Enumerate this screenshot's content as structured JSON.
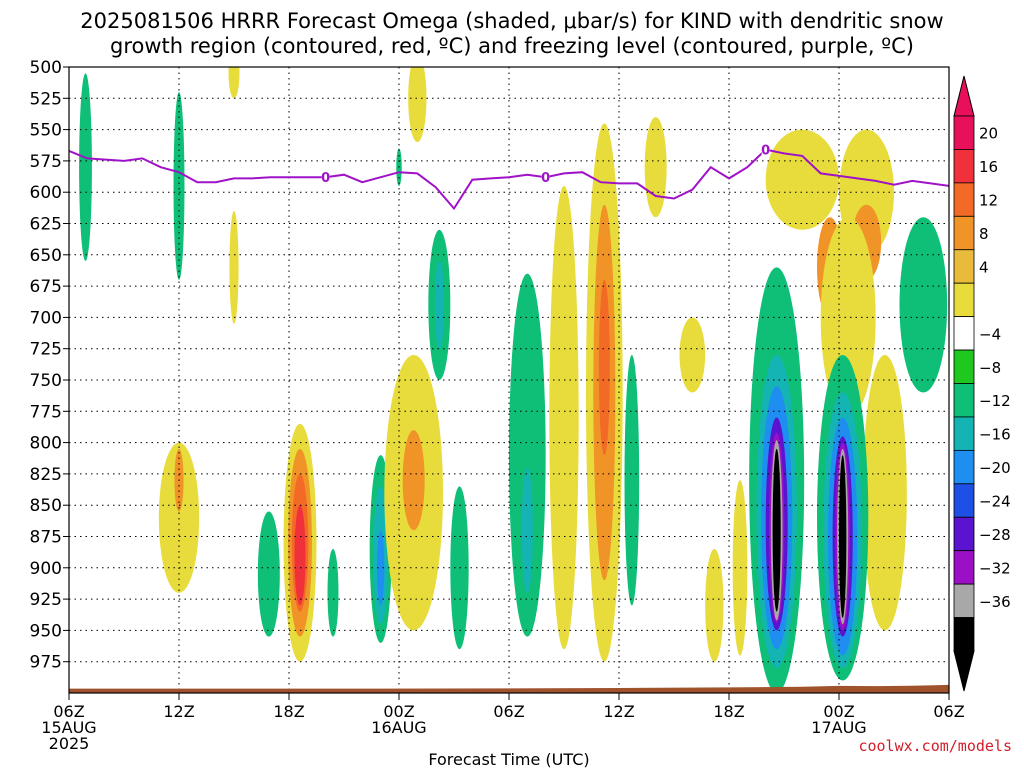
{
  "chart_data": {
    "type": "heatmap",
    "title_line1": "2025081506 HRRR Forecast Omega (shaded, μbar/s) for KIND with dendritic snow",
    "title_line2": "growth region (contoured, red, ºC) and freezing level (contoured, purple, ºC)",
    "xlabel": "Forecast Time (UTC)",
    "credit": "coolwx.com/models",
    "x_range_hours": [
      0,
      48
    ],
    "y_range_hPa": [
      500,
      1000
    ],
    "y_scale": "linear",
    "y_inverted": true,
    "grid": true,
    "y_ticks": [
      500,
      525,
      550,
      575,
      600,
      625,
      650,
      675,
      700,
      725,
      750,
      775,
      800,
      825,
      850,
      875,
      900,
      925,
      950,
      975
    ],
    "x_ticks": [
      {
        "h": 0,
        "lines": [
          "06Z",
          "15AUG",
          "2025"
        ]
      },
      {
        "h": 6,
        "lines": [
          "12Z"
        ]
      },
      {
        "h": 12,
        "lines": [
          "18Z"
        ]
      },
      {
        "h": 18,
        "lines": [
          "00Z",
          "16AUG"
        ]
      },
      {
        "h": 24,
        "lines": [
          "06Z"
        ]
      },
      {
        "h": 30,
        "lines": [
          "12Z"
        ]
      },
      {
        "h": 36,
        "lines": [
          "18Z"
        ]
      },
      {
        "h": 42,
        "lines": [
          "00Z",
          "17AUG"
        ]
      },
      {
        "h": 48,
        "lines": [
          "06Z"
        ]
      }
    ],
    "colorbar": {
      "labels": [
        "20",
        "16",
        "12",
        "8",
        "4",
        "−4",
        "−8",
        "−12",
        "−16",
        "−20",
        "−24",
        "−28",
        "−32",
        "−36"
      ],
      "colors": [
        "#e8105a",
        "#f0303a",
        "#f26a26",
        "#f09428",
        "#e8bc3a",
        "#e8dc3c",
        "#ffffff",
        "#1ec81e",
        "#0fbf78",
        "#14b4b4",
        "#1e8ff0",
        "#1e50e8",
        "#5a14d0",
        "#9b0fc6",
        "#a8a8a8",
        "#000000"
      ],
      "top_arrow": "#e8105a",
      "bottom_arrow": "#000000"
    },
    "freezing_level": {
      "label": "0",
      "color": "#a012c8",
      "x_hours": [
        0,
        1,
        3,
        4,
        5,
        6,
        7,
        8,
        9,
        10,
        11,
        12,
        13,
        14,
        15,
        16,
        17,
        18,
        19,
        20,
        21,
        22,
        23,
        24,
        25,
        26,
        27,
        28,
        29,
        30,
        31,
        32,
        33,
        34,
        35,
        36,
        37,
        38,
        39,
        40,
        41,
        42,
        43,
        44,
        45,
        46,
        47,
        48
      ],
      "y_hPa": [
        567,
        573,
        575,
        573,
        580,
        584,
        592,
        592,
        589,
        589,
        588,
        588,
        588,
        588,
        586,
        592,
        588,
        584,
        585,
        596,
        613,
        590,
        589,
        588,
        586,
        588,
        585,
        584,
        592,
        593,
        593,
        603,
        605,
        598,
        580,
        589,
        580,
        566,
        569,
        571,
        585,
        587,
        589,
        591,
        594,
        591,
        593,
        595
      ],
      "label_hours": [
        14,
        26,
        38
      ]
    },
    "omega_features": [
      {
        "v": -8,
        "x": 0.9,
        "p": 580,
        "w": 0.35,
        "h": 75
      },
      {
        "v": -8,
        "x": 6.0,
        "p": 595,
        "w": 0.3,
        "h": 75
      },
      {
        "v": 6,
        "x": 9.0,
        "p": 505,
        "w": 0.3,
        "h": 20
      },
      {
        "v": 6,
        "x": 9.0,
        "p": 660,
        "w": 0.25,
        "h": 45
      },
      {
        "v": -8,
        "x": 18.0,
        "p": 580,
        "w": 0.15,
        "h": 15
      },
      {
        "v": 6,
        "x": 19.0,
        "p": 525,
        "w": 0.5,
        "h": 35
      },
      {
        "v": -8,
        "x": 20.2,
        "p": 690,
        "w": 0.6,
        "h": 60
      },
      {
        "v": -12,
        "x": 20.2,
        "p": 690,
        "w": 0.25,
        "h": 35
      },
      {
        "v": 6,
        "x": 32.0,
        "p": 580,
        "w": 0.6,
        "h": 40
      },
      {
        "v": 6,
        "x": 34.0,
        "p": 730,
        "w": 0.7,
        "h": 30
      },
      {
        "v": 6,
        "x": 40.0,
        "p": 590,
        "w": 2.0,
        "h": 40
      },
      {
        "v": 6,
        "x": 43.5,
        "p": 600,
        "w": 1.5,
        "h": 50
      },
      {
        "v": 10,
        "x": 41.5,
        "p": 660,
        "w": 0.7,
        "h": 40
      },
      {
        "v": 10,
        "x": 43.5,
        "p": 640,
        "w": 0.8,
        "h": 30
      },
      {
        "v": 6,
        "x": 42.5,
        "p": 700,
        "w": 1.5,
        "h": 80
      },
      {
        "v": 6,
        "x": 44.5,
        "p": 840,
        "w": 1.2,
        "h": 110
      },
      {
        "v": -8,
        "x": 46.6,
        "p": 690,
        "w": 1.3,
        "h": 70
      },
      {
        "v": 6,
        "x": 6.0,
        "p": 860,
        "w": 1.1,
        "h": 60
      },
      {
        "v": 10,
        "x": 6.0,
        "p": 830,
        "w": 0.25,
        "h": 25
      },
      {
        "v": -8,
        "x": 10.9,
        "p": 905,
        "w": 0.6,
        "h": 50
      },
      {
        "v": 6,
        "x": 12.6,
        "p": 880,
        "w": 0.9,
        "h": 95
      },
      {
        "v": 10,
        "x": 12.6,
        "p": 880,
        "w": 0.65,
        "h": 75
      },
      {
        "v": 14,
        "x": 12.6,
        "p": 880,
        "w": 0.45,
        "h": 55
      },
      {
        "v": 18,
        "x": 12.6,
        "p": 890,
        "w": 0.3,
        "h": 40
      },
      {
        "v": -8,
        "x": 14.4,
        "p": 920,
        "w": 0.3,
        "h": 35
      },
      {
        "v": -8,
        "x": 17.0,
        "p": 885,
        "w": 0.6,
        "h": 75
      },
      {
        "v": -12,
        "x": 17.0,
        "p": 890,
        "w": 0.4,
        "h": 55
      },
      {
        "v": -16,
        "x": 17.0,
        "p": 900,
        "w": 0.2,
        "h": 30
      },
      {
        "v": 6,
        "x": 18.8,
        "p": 840,
        "w": 1.6,
        "h": 110
      },
      {
        "v": 10,
        "x": 18.8,
        "p": 830,
        "w": 0.6,
        "h": 40
      },
      {
        "v": -8,
        "x": 21.3,
        "p": 900,
        "w": 0.5,
        "h": 65
      },
      {
        "v": -8,
        "x": 25.0,
        "p": 810,
        "w": 1.0,
        "h": 145
      },
      {
        "v": -12,
        "x": 25.0,
        "p": 870,
        "w": 0.3,
        "h": 50
      },
      {
        "v": 6,
        "x": 27.0,
        "p": 780,
        "w": 0.8,
        "h": 185
      },
      {
        "v": 6,
        "x": 29.2,
        "p": 760,
        "w": 1.0,
        "h": 215
      },
      {
        "v": 10,
        "x": 29.2,
        "p": 760,
        "w": 0.6,
        "h": 150
      },
      {
        "v": 14,
        "x": 29.2,
        "p": 740,
        "w": 0.3,
        "h": 70
      },
      {
        "v": -8,
        "x": 30.7,
        "p": 830,
        "w": 0.4,
        "h": 100
      },
      {
        "v": 6,
        "x": 35.2,
        "p": 930,
        "w": 0.5,
        "h": 45
      },
      {
        "v": 6,
        "x": 36.6,
        "p": 900,
        "w": 0.4,
        "h": 70
      },
      {
        "v": -8,
        "x": 38.6,
        "p": 830,
        "w": 1.5,
        "h": 170
      },
      {
        "v": -12,
        "x": 38.6,
        "p": 855,
        "w": 1.1,
        "h": 125
      },
      {
        "v": -16,
        "x": 38.6,
        "p": 860,
        "w": 0.85,
        "h": 105
      },
      {
        "v": -24,
        "x": 38.6,
        "p": 865,
        "w": 0.6,
        "h": 85
      },
      {
        "v": -30,
        "x": 38.6,
        "p": 868,
        "w": 0.42,
        "h": 76
      },
      {
        "v": -34,
        "x": 38.6,
        "p": 870,
        "w": 0.32,
        "h": 72
      },
      {
        "v": -40,
        "x": 38.6,
        "p": 870,
        "w": 0.22,
        "h": 65
      },
      {
        "v": -8,
        "x": 42.2,
        "p": 860,
        "w": 1.4,
        "h": 130
      },
      {
        "v": -12,
        "x": 42.2,
        "p": 870,
        "w": 1.05,
        "h": 110
      },
      {
        "v": -16,
        "x": 42.2,
        "p": 875,
        "w": 0.8,
        "h": 95
      },
      {
        "v": -24,
        "x": 42.2,
        "p": 875,
        "w": 0.55,
        "h": 80
      },
      {
        "v": -30,
        "x": 42.2,
        "p": 875,
        "w": 0.4,
        "h": 75
      },
      {
        "v": -34,
        "x": 42.2,
        "p": 875,
        "w": 0.3,
        "h": 70
      },
      {
        "v": -40,
        "x": 42.2,
        "p": 875,
        "w": 0.2,
        "h": 65
      }
    ],
    "ground_color": "#a0522d"
  }
}
